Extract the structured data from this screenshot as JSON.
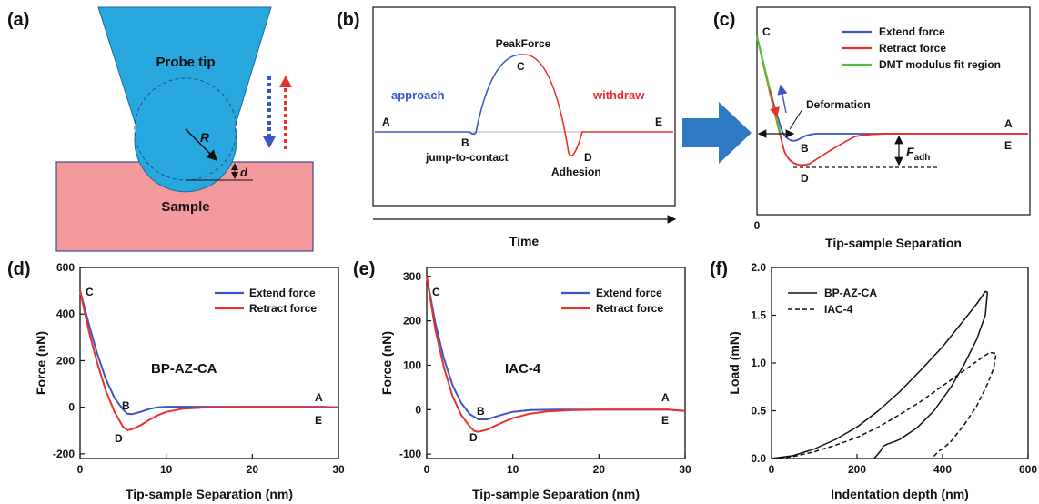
{
  "panels": {
    "a": {
      "label": "(a)",
      "probe_label": "Probe tip",
      "sample_label": "Sample",
      "radius_label": "R",
      "depth_label": "d",
      "colors": {
        "tip": "#29a8df",
        "tip_edge": "#1b6f9a",
        "sample": "#f59a9c",
        "sample_edge": "#3a4a8a",
        "down_arrow": "#3b55c4",
        "up_arrow": "#e8302c"
      }
    },
    "b": {
      "label": "(b)",
      "approach_label": "approach",
      "withdraw_label": "withdraw",
      "peak_label": "PeakForce",
      "xlabel": "Time",
      "points": {
        "A": "A",
        "B": "B",
        "C": "C",
        "D": "D",
        "E": "E"
      },
      "jump_label": "jump-to-contact",
      "adhesion_label": "Adhesion",
      "colors": {
        "approach": "#3b55c4",
        "withdraw": "#e8302c"
      }
    },
    "c": {
      "label": "(c)",
      "xlabel": "Tip-sample Separation",
      "origin_tick": "0",
      "deformation_label": "Deformation",
      "fadh_label": "F",
      "fadh_sub": "adh",
      "points": {
        "A": "A",
        "B": "B",
        "C": "C",
        "D": "D",
        "E": "E"
      },
      "legend": [
        "Extend force",
        "Retract force",
        "DMT modulus fit region"
      ],
      "colors": {
        "extend": "#3b55c4",
        "retract": "#e8302c",
        "fit": "#5cbf3a",
        "arrow_big": "#2f79c2"
      }
    },
    "d": {
      "label": "(d)",
      "sample_name": "BP-AZ-CA",
      "points": {
        "A": "A",
        "B": "B",
        "C": "C",
        "D": "D",
        "E": "E"
      }
    },
    "e": {
      "label": "(e)",
      "sample_name": "IAC-4",
      "points": {
        "A": "A",
        "B": "B",
        "C": "C",
        "D": "D",
        "E": "E"
      }
    },
    "f": {
      "label": "(f)"
    }
  },
  "chart_data": [
    {
      "type": "line",
      "panel": "d",
      "xlabel": "Tip-sample Separation (nm)",
      "ylabel": "Force (nN)",
      "xlim": [
        0,
        30
      ],
      "ylim": [
        -220,
        600
      ],
      "xticks": [
        0,
        10,
        20,
        30
      ],
      "yticks": [
        -200,
        0,
        200,
        400,
        600
      ],
      "legend_position": "top-right",
      "series": [
        {
          "name": "Extend force",
          "color": "#3b55c4",
          "x": [
            0,
            1,
            2,
            3,
            4,
            5,
            5.5,
            6,
            7,
            8,
            9,
            10,
            12,
            15,
            20,
            25,
            28,
            30
          ],
          "y": [
            500,
            360,
            230,
            120,
            40,
            -10,
            -28,
            -30,
            -20,
            -8,
            0,
            2,
            2,
            2,
            2,
            2,
            2,
            0
          ]
        },
        {
          "name": "Retract force",
          "color": "#e8302c",
          "x": [
            0,
            1,
            2,
            3,
            4,
            5,
            5.5,
            6,
            7,
            8,
            9,
            10,
            12,
            15,
            20,
            25,
            28,
            30
          ],
          "y": [
            500,
            330,
            190,
            70,
            -20,
            -85,
            -98,
            -95,
            -78,
            -55,
            -35,
            -20,
            -6,
            0,
            1,
            1,
            0,
            0
          ]
        }
      ]
    },
    {
      "type": "line",
      "panel": "e",
      "xlabel": "Tip-sample Separation (nm)",
      "ylabel": "Force (nN)",
      "xlim": [
        0,
        30
      ],
      "ylim": [
        -110,
        320
      ],
      "xticks": [
        0,
        10,
        20,
        30
      ],
      "yticks": [
        -100,
        0,
        100,
        200,
        300
      ],
      "legend_position": "top-right",
      "series": [
        {
          "name": "Extend force",
          "color": "#3b55c4",
          "x": [
            0,
            1,
            2,
            3,
            4,
            5,
            6,
            7,
            8,
            9,
            10,
            12,
            15,
            20,
            25,
            28,
            30
          ],
          "y": [
            300,
            195,
            115,
            55,
            15,
            -10,
            -22,
            -22,
            -16,
            -10,
            -5,
            -1,
            0,
            0,
            0,
            0,
            -3
          ]
        },
        {
          "name": "Retract force",
          "color": "#e8302c",
          "x": [
            0,
            1,
            2,
            3,
            4,
            5,
            5.5,
            6,
            7,
            8,
            9,
            10,
            12,
            14,
            17,
            20,
            25,
            28,
            30
          ],
          "y": [
            300,
            180,
            95,
            30,
            -12,
            -38,
            -48,
            -50,
            -45,
            -36,
            -27,
            -19,
            -9,
            -4,
            -1,
            0,
            0,
            0,
            -3
          ]
        }
      ]
    },
    {
      "type": "line",
      "panel": "f",
      "xlabel": "Indentation depth (nm)",
      "ylabel": "Load (mN)",
      "xlim": [
        0,
        600
      ],
      "ylim": [
        0,
        2.0
      ],
      "xticks": [
        0,
        200,
        400,
        600
      ],
      "yticks": [
        0.0,
        0.5,
        1.0,
        1.5,
        2.0
      ],
      "legend_position": "top-left",
      "series": [
        {
          "name": "BP-AZ-CA",
          "style": "solid",
          "x": [
            0,
            50,
            100,
            150,
            200,
            250,
            300,
            350,
            400,
            450,
            480,
            500,
            505,
            500,
            480,
            450,
            420,
            380,
            340,
            300,
            290,
            270,
            262,
            255,
            240
          ],
          "y": [
            0,
            0.03,
            0.1,
            0.2,
            0.33,
            0.5,
            0.7,
            0.93,
            1.17,
            1.45,
            1.62,
            1.75,
            1.74,
            1.5,
            1.25,
            0.98,
            0.75,
            0.5,
            0.32,
            0.2,
            0.18,
            0.15,
            0.13,
            0.08,
            0
          ]
        },
        {
          "name": "IAC-4",
          "style": "dashed",
          "x": [
            0,
            50,
            100,
            150,
            200,
            250,
            300,
            350,
            400,
            450,
            490,
            510,
            525,
            520,
            505,
            480,
            450,
            420,
            400,
            395,
            385,
            375
          ],
          "y": [
            0,
            0.02,
            0.07,
            0.14,
            0.22,
            0.33,
            0.46,
            0.6,
            0.76,
            0.92,
            1.05,
            1.11,
            1.1,
            0.95,
            0.78,
            0.55,
            0.35,
            0.18,
            0.1,
            0.09,
            0.05,
            0
          ]
        }
      ]
    }
  ]
}
